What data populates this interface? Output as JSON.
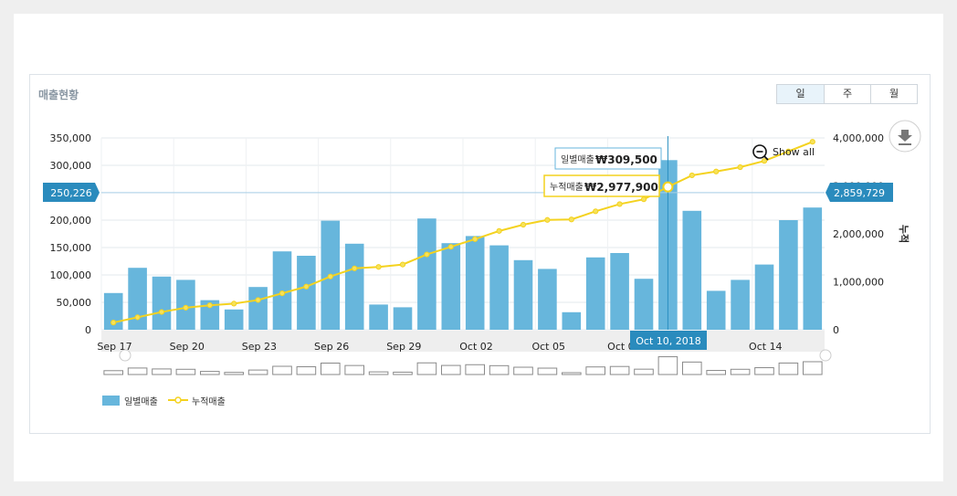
{
  "panel": {
    "title": "매출현황",
    "periods": [
      "일",
      "주",
      "월"
    ],
    "active_period": "일"
  },
  "controls": {
    "show_all_label": "Show all",
    "download_icon": "download-icon",
    "zoom_out_icon": "zoom-out-icon"
  },
  "chart_data": {
    "type": "bar",
    "x_tick_labels": [
      "Sep 17",
      "Sep 20",
      "Sep 23",
      "Sep 26",
      "Sep 29",
      "Oct 02",
      "Oct 05",
      "Oct 0",
      "Oct 14"
    ],
    "x_tick_indices": [
      0,
      3,
      6,
      9,
      12,
      15,
      18,
      21,
      27
    ],
    "left_axis": {
      "ylim": [
        0,
        350000
      ],
      "ticks": [
        "0",
        "50,000",
        "100,000",
        "150,000",
        "200,000",
        "250,000",
        "300,000",
        "350,000"
      ]
    },
    "right_axis": {
      "ylim": [
        0,
        4000000
      ],
      "ticks": [
        "0",
        "1,000,000",
        "2,000,000",
        "3,000,000",
        "4,000,000"
      ],
      "label": "누적"
    },
    "series": [
      {
        "name": "일별매출",
        "kind": "bar",
        "axis": "left",
        "color": "#67b6dc",
        "values": [
          67000,
          113000,
          97000,
          91000,
          54000,
          37000,
          78000,
          143000,
          135000,
          199000,
          157000,
          46000,
          41000,
          203000,
          158000,
          171000,
          154000,
          127000,
          111000,
          32000,
          132000,
          140000,
          93000,
          309500,
          217000,
          71000,
          91000,
          119000,
          200000,
          223000
        ]
      },
      {
        "name": "누적매출",
        "kind": "line",
        "axis": "right",
        "color": "#f4d21f",
        "values": [
          150000,
          260000,
          370000,
          460000,
          510000,
          545000,
          620000,
          760000,
          900000,
          1110000,
          1280000,
          1310000,
          1360000,
          1570000,
          1730000,
          1890000,
          2060000,
          2190000,
          2290000,
          2300000,
          2470000,
          2620000,
          2720000,
          2977900,
          3220000,
          3300000,
          3390000,
          3520000,
          3720000,
          3920000
        ]
      }
    ],
    "highlight_index": 23,
    "tooltip": {
      "date": "Oct 10, 2018",
      "bar_label": "일별매출",
      "bar_value": "₩309,500",
      "line_label": "누적매출",
      "line_value": "₩2,977,900"
    },
    "crosshair": {
      "left_value": "250,226",
      "right_value": "2,859,729",
      "left_numeric": 250226
    },
    "grid": true,
    "legend_position": "bottom-left"
  }
}
